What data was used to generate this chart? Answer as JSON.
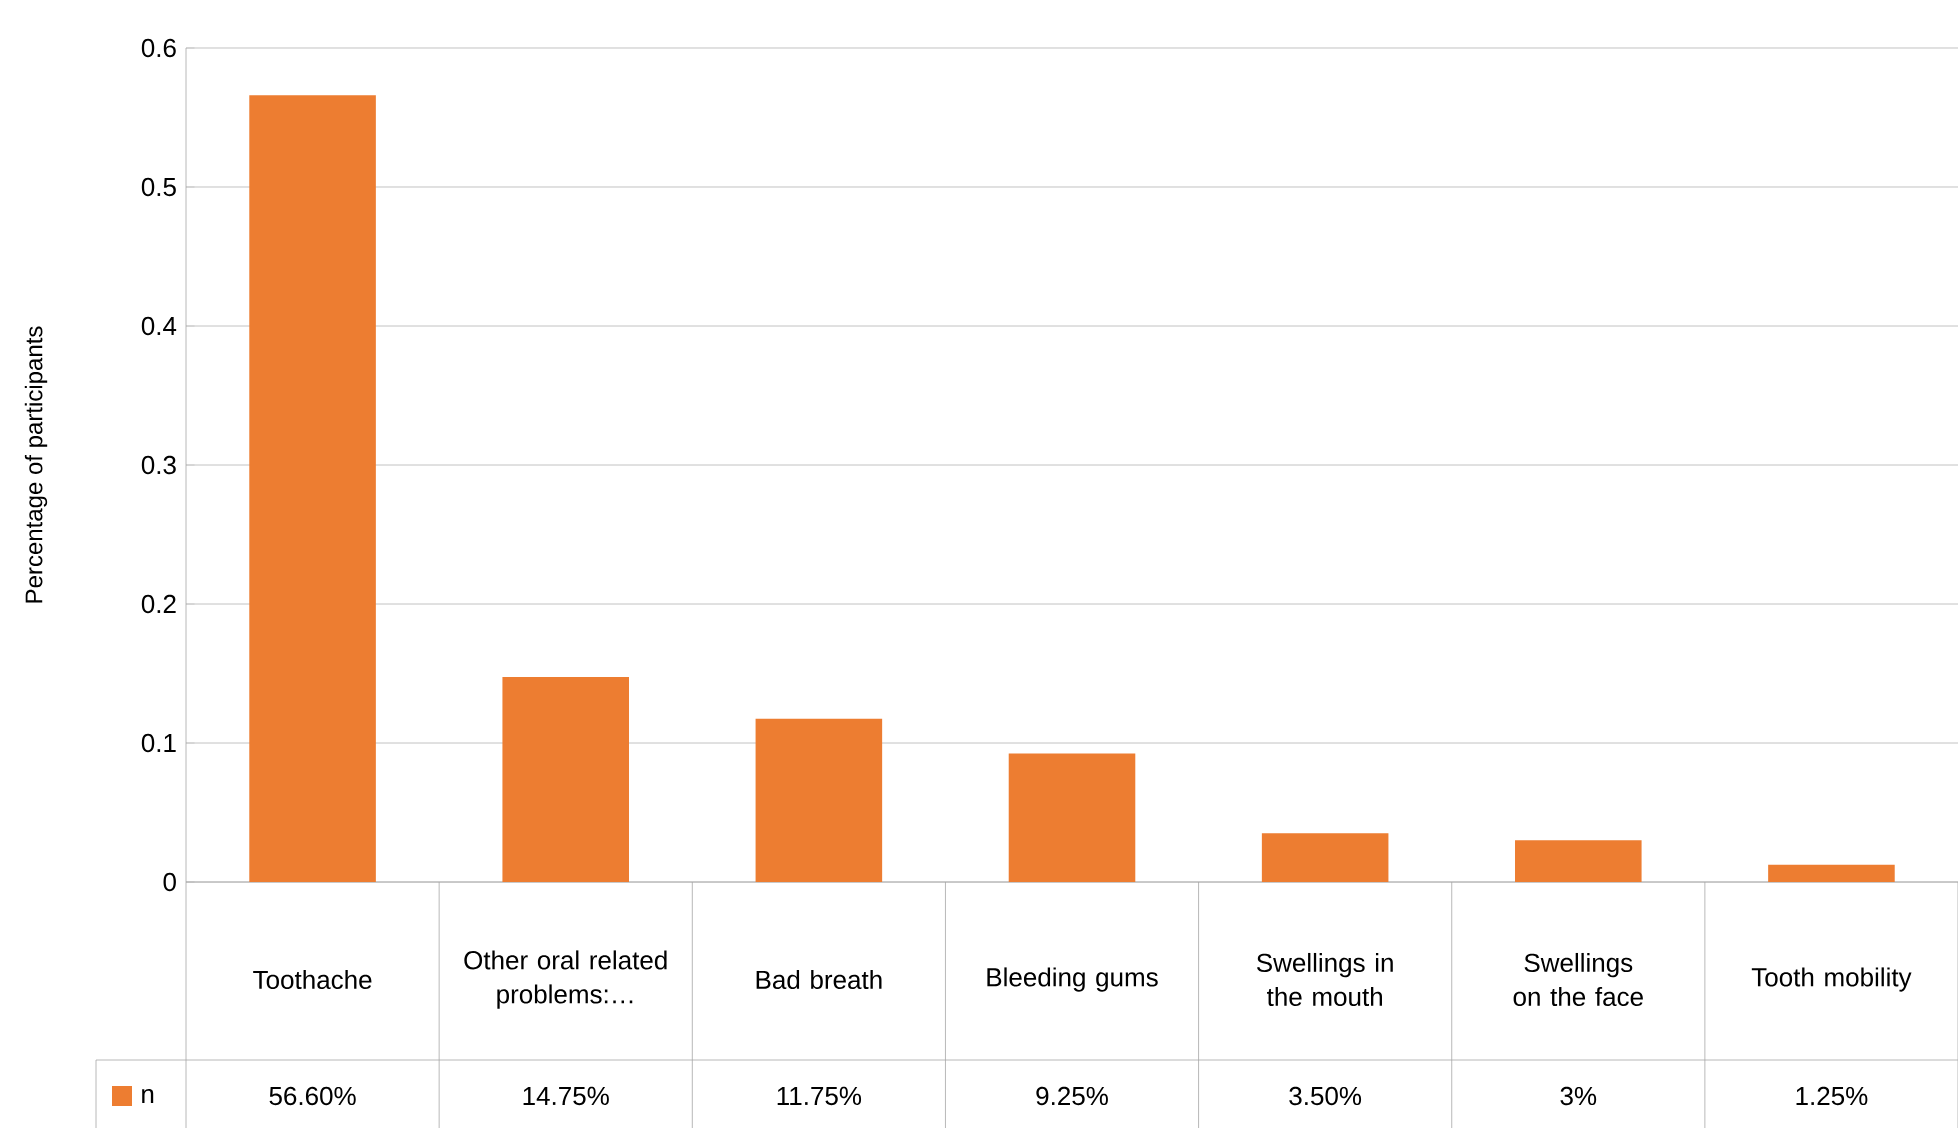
{
  "chart_data": {
    "type": "bar",
    "ylabel": "Percentage of participants",
    "categories": [
      "Toothache",
      "Other oral related problems:…",
      "Bad breath",
      "Bleeding gums",
      "Swellings in the mouth",
      "Swellings on the face",
      "Tooth mobility"
    ],
    "series": [
      {
        "name": "n",
        "color": "#ed7d31",
        "values": [
          0.566,
          0.1475,
          0.1175,
          0.0925,
          0.035,
          0.03,
          0.0125
        ],
        "value_labels": [
          "56.60%",
          "14.75%",
          "11.75%",
          "9.25%",
          "3.50%",
          "3%",
          "1.25%"
        ]
      }
    ],
    "ylim": [
      0,
      0.6
    ],
    "yticks": [
      0,
      0.1,
      0.2,
      0.3,
      0.4,
      0.5,
      0.6
    ],
    "grid": "y",
    "legend": "bottom"
  }
}
